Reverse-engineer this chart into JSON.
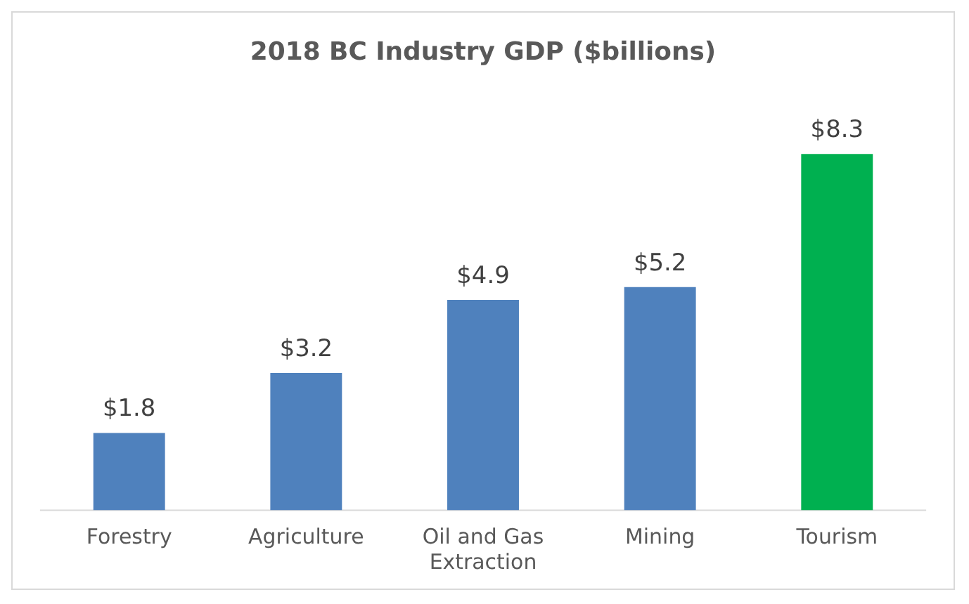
{
  "chart_data": {
    "type": "bar",
    "title": "2018 BC Industry GDP ($billions)",
    "categories": [
      "Forestry",
      "Agriculture",
      "Oil and Gas Extraction",
      "Mining",
      "Tourism"
    ],
    "values": [
      1.8,
      3.2,
      4.9,
      5.2,
      8.3
    ],
    "value_labels": [
      "$1.8",
      "$3.2",
      "$4.9",
      "$5.2",
      "$8.3"
    ],
    "colors": [
      "#4f81bd",
      "#4f81bd",
      "#4f81bd",
      "#4f81bd",
      "#00b050"
    ],
    "legend": false
  }
}
